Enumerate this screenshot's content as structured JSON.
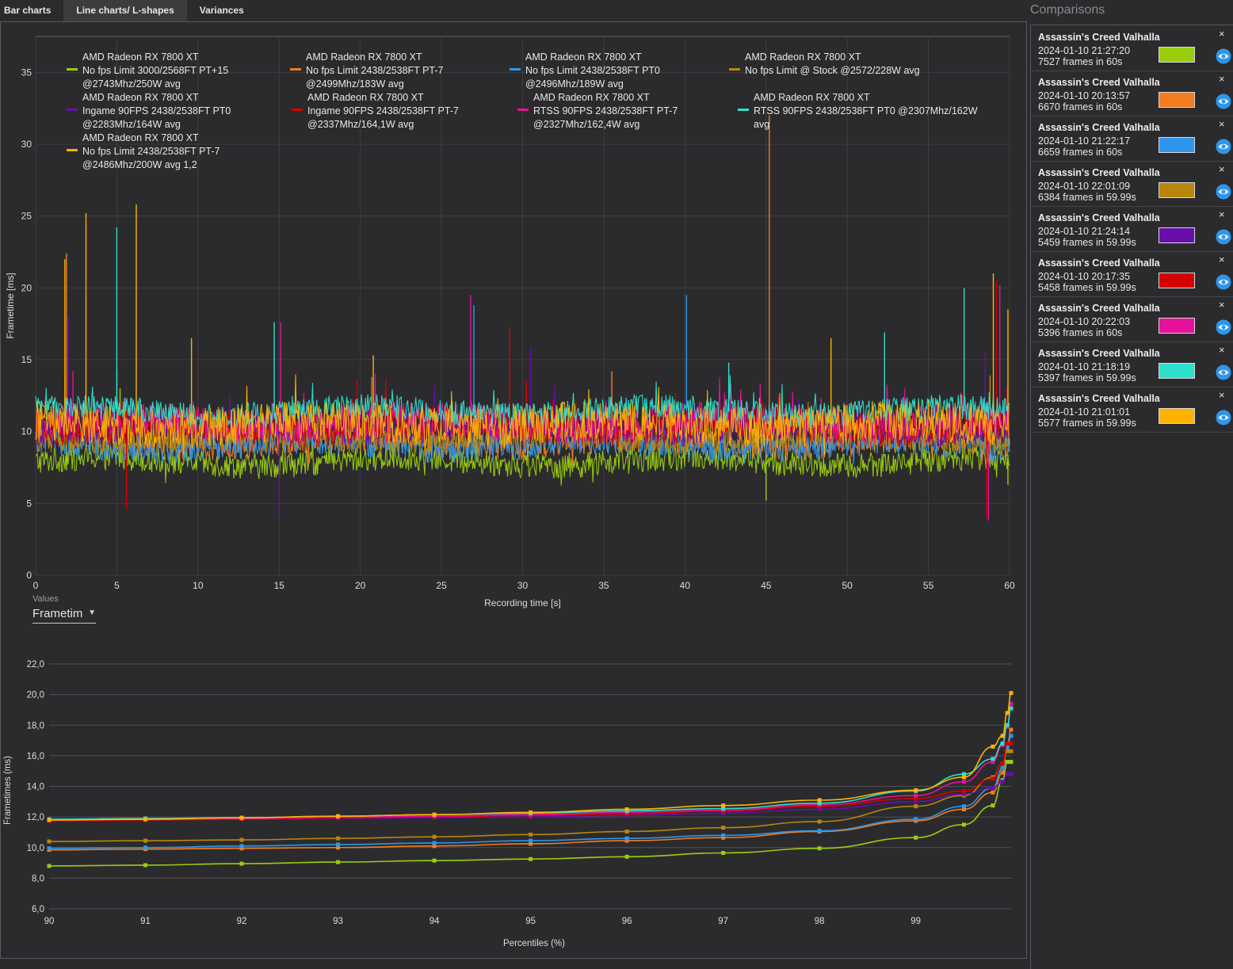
{
  "tabs": [
    {
      "label": "Bar charts",
      "active": false
    },
    {
      "label": "Line charts/ L-shapes",
      "active": true
    },
    {
      "label": "Variances",
      "active": false
    }
  ],
  "sidebar": {
    "title": "Comparisons",
    "cards": [
      {
        "title": "Assassin's Creed Valhalla",
        "date": "2024-01-10 21:27:20",
        "frames": "7527 frames in 60s",
        "color": "#9acd0f",
        "close": "×",
        "icon": "eye-icon"
      },
      {
        "title": "Assassin's Creed Valhalla",
        "date": "2024-01-10 20:13:57",
        "frames": "6670 frames in 60s",
        "color": "#f47c20",
        "close": "×",
        "icon": "eye-icon"
      },
      {
        "title": "Assassin's Creed Valhalla",
        "date": "2024-01-10 21:22:17",
        "frames": "6659 frames in 60s",
        "color": "#2e96ea",
        "close": "×",
        "icon": "eye-icon"
      },
      {
        "title": "Assassin's Creed Valhalla",
        "date": "2024-01-10 22:01:09",
        "frames": "6384 frames in 59.99s",
        "color": "#b8860b",
        "close": "×",
        "icon": "eye-icon"
      },
      {
        "title": "Assassin's Creed Valhalla",
        "date": "2024-01-10 21:24:14",
        "frames": "5459 frames in 59.99s",
        "color": "#6a0dad",
        "close": "×",
        "icon": "eye-icon"
      },
      {
        "title": "Assassin's Creed Valhalla",
        "date": "2024-01-10 20:17:35",
        "frames": "5458 frames in 59.99s",
        "color": "#d40000",
        "close": "×",
        "icon": "eye-icon"
      },
      {
        "title": "Assassin's Creed Valhalla",
        "date": "2024-01-10 20:22:03",
        "frames": "5396 frames in 60s",
        "color": "#e5119a",
        "close": "×",
        "icon": "eye-icon"
      },
      {
        "title": "Assassin's Creed Valhalla",
        "date": "2024-01-10 21:18:19",
        "frames": "5397 frames in 59.99s",
        "color": "#2de0cc",
        "close": "×",
        "icon": "eye-icon"
      },
      {
        "title": "Assassin's Creed Valhalla",
        "date": "2024-01-10 21:01:01",
        "frames": "5577 frames in 59.99s",
        "color": "#ffb300",
        "close": "×",
        "icon": "eye-icon"
      }
    ]
  },
  "values_selector": {
    "label": "Values",
    "value": "Frametime"
  },
  "chart_data": [
    {
      "type": "line",
      "title": "",
      "xlabel": "Recording time [s]",
      "ylabel": "Frametime [ms]",
      "xlim": [
        0,
        60
      ],
      "ylim": [
        0,
        37.5
      ],
      "xticks": [
        0,
        5,
        10,
        15,
        20,
        25,
        30,
        35,
        40,
        45,
        50,
        55,
        60
      ],
      "yticks": [
        0,
        5,
        10,
        15,
        20,
        25,
        30,
        35
      ],
      "grid": true,
      "legend_position": "top",
      "series": [
        {
          "name": "AMD Radeon RX 7800 XT\nNo fps Limit 3000/2568FT PT+15\n@2743Mhz/250W avg",
          "color": "#9acd0f",
          "base": 7.9,
          "spread": 0.9,
          "spikes": [
            [
              1.9,
              12.4
            ],
            [
              5.2,
              13.0
            ],
            [
              22.0,
              11.5
            ],
            [
              45.0,
              5.2
            ],
            [
              59.9,
              6.3
            ]
          ]
        },
        {
          "name": "AMD Radeon RX 7800 XT\nNo fps Limit 2438/2538FT PT-7\n@2499Mhz/183W avg",
          "color": "#f47c20",
          "base": 9.2,
          "spread": 0.9,
          "spikes": [
            [
              1.9,
              22.4
            ],
            [
              45.2,
              32.0
            ],
            [
              35.5,
              14.2
            ]
          ]
        },
        {
          "name": "AMD Radeon RX 7800 XT\nNo fps Limit 2438/2538FT PT0\n@2496Mhz/189W avg",
          "color": "#2e96ea",
          "base": 9.1,
          "spread": 1.0,
          "spikes": [
            [
              27.0,
              18.8
            ],
            [
              40.1,
              19.5
            ],
            [
              5.0,
              14.1
            ],
            [
              57.9,
              12.1
            ]
          ]
        },
        {
          "name": "AMD Radeon RX 7800 XT\nNo fps Limit @ Stock @2572/228W avg",
          "color": "#b8860b",
          "base": 9.6,
          "spread": 1.0,
          "spikes": [
            [
              1.8,
              14.0
            ],
            [
              20.7,
              13.8
            ],
            [
              58.8,
              13.9
            ]
          ]
        },
        {
          "name": "AMD Radeon RX 7800 XT\nIngame 90FPS 2438/2538FT PT0\n@2283Mhz/164W avg",
          "color": "#6a0dad",
          "base": 10.3,
          "spread": 1.1,
          "spikes": [
            [
              2.0,
              18.0
            ],
            [
              15.0,
              4.1
            ],
            [
              30.5,
              15.8
            ],
            [
              58.5,
              15.5
            ]
          ]
        },
        {
          "name": "AMD Radeon RX 7800 XT\nIngame 90FPS 2438/2538FT PT-7\n@2337Mhz/164,1W avg",
          "color": "#d40000",
          "base": 10.4,
          "spread": 1.2,
          "spikes": [
            [
              5.6,
              4.6
            ],
            [
              29.2,
              17.2
            ],
            [
              58.6,
              4.0
            ],
            [
              59.2,
              20.5
            ],
            [
              19.8,
              13.6
            ]
          ]
        },
        {
          "name": "AMD Radeon RX 7800 XT\nRTSS 90FPS 2438/2538FT PT-7\n@2327Mhz/162,4W avg",
          "color": "#e5119a",
          "base": 10.6,
          "spread": 1.2,
          "spikes": [
            [
              26.8,
              19.5
            ],
            [
              15.1,
              17.6
            ],
            [
              59.4,
              20.2
            ],
            [
              58.7,
              3.8
            ],
            [
              2.3,
              14.2
            ]
          ]
        },
        {
          "name": "AMD Radeon RX 7800 XT\nRTSS 90FPS 2438/2538FT PT0 @2307Mhz/162W\navg",
          "color": "#2de0cc",
          "base": 11.4,
          "spread": 0.9,
          "spikes": [
            [
              5.0,
              24.2
            ],
            [
              14.7,
              17.6
            ],
            [
              57.2,
              20.0
            ],
            [
              42.7,
              14.8
            ],
            [
              52.3,
              16.9
            ]
          ]
        },
        {
          "name": "AMD Radeon RX 7800 XT\nNo fps Limit 2438/2538FT PT-7\n@2486Mhz/200W avg 1,2",
          "color": "#ffb300",
          "base": 10.5,
          "spread": 1.4,
          "spikes": [
            [
              3.1,
              25.2
            ],
            [
              6.2,
              25.8
            ],
            [
              1.8,
              22.0
            ],
            [
              20.8,
              15.3
            ],
            [
              59.9,
              18.5
            ],
            [
              59.0,
              21.0
            ],
            [
              49.0,
              16.5
            ],
            [
              9.6,
              16.5
            ]
          ]
        }
      ]
    },
    {
      "type": "line",
      "title": "",
      "xlabel": "Percentiles (%)",
      "ylabel": "Frametimes (ms)",
      "xlim": [
        90,
        99.99
      ],
      "ylim": [
        6,
        22
      ],
      "xticks": [
        90,
        91,
        92,
        93,
        94,
        95,
        96,
        97,
        98,
        99
      ],
      "yticks": [
        "6,0",
        "8,0",
        "10,0",
        "12,0",
        "14,0",
        "16,0",
        "18,0",
        "20,0",
        "22,0"
      ],
      "grid": true,
      "x": [
        90,
        91,
        92,
        93,
        94,
        95,
        96,
        97,
        98,
        99,
        99.5,
        99.8,
        99.9,
        99.95,
        99.99
      ],
      "series": [
        {
          "color": "#9acd0f",
          "values": [
            8.8,
            8.85,
            8.95,
            9.05,
            9.15,
            9.25,
            9.4,
            9.65,
            9.95,
            10.65,
            11.5,
            12.75,
            14.4,
            15.6,
            15.6
          ]
        },
        {
          "color": "#f47c20",
          "values": [
            9.85,
            9.9,
            9.95,
            10.0,
            10.1,
            10.25,
            10.45,
            10.65,
            11.05,
            11.75,
            12.5,
            13.6,
            14.9,
            16.7,
            17.7
          ]
        },
        {
          "color": "#2e96ea",
          "values": [
            9.95,
            10.0,
            10.1,
            10.2,
            10.3,
            10.45,
            10.6,
            10.8,
            11.1,
            11.85,
            12.7,
            13.9,
            15.2,
            16.5,
            17.3
          ]
        },
        {
          "color": "#b8860b",
          "values": [
            10.4,
            10.45,
            10.5,
            10.6,
            10.7,
            10.85,
            11.05,
            11.3,
            11.7,
            12.7,
            13.4,
            14.6,
            15.5,
            16.3,
            16.3
          ]
        },
        {
          "color": "#6a0dad",
          "values": [
            11.75,
            11.8,
            11.85,
            11.9,
            11.95,
            12.0,
            12.1,
            12.25,
            12.5,
            13.0,
            13.5,
            13.9,
            14.3,
            14.8,
            14.8
          ]
        },
        {
          "color": "#d40000",
          "values": [
            11.75,
            11.8,
            11.85,
            11.95,
            12.0,
            12.1,
            12.2,
            12.4,
            12.7,
            13.2,
            13.7,
            14.5,
            15.5,
            16.8,
            16.8
          ]
        },
        {
          "color": "#e5119a",
          "values": [
            11.8,
            11.85,
            11.9,
            12.0,
            12.05,
            12.15,
            12.3,
            12.45,
            12.8,
            13.4,
            14.3,
            15.6,
            16.7,
            17.9,
            19.4
          ]
        },
        {
          "color": "#2de0cc",
          "values": [
            11.85,
            11.9,
            11.95,
            12.05,
            12.15,
            12.25,
            12.4,
            12.55,
            12.9,
            13.7,
            14.8,
            15.8,
            16.8,
            18.0,
            19.1
          ]
        },
        {
          "color": "#ffb300",
          "values": [
            11.8,
            11.85,
            11.95,
            12.05,
            12.15,
            12.3,
            12.5,
            12.75,
            13.1,
            13.75,
            14.6,
            16.6,
            17.3,
            18.8,
            20.1
          ]
        }
      ]
    }
  ]
}
